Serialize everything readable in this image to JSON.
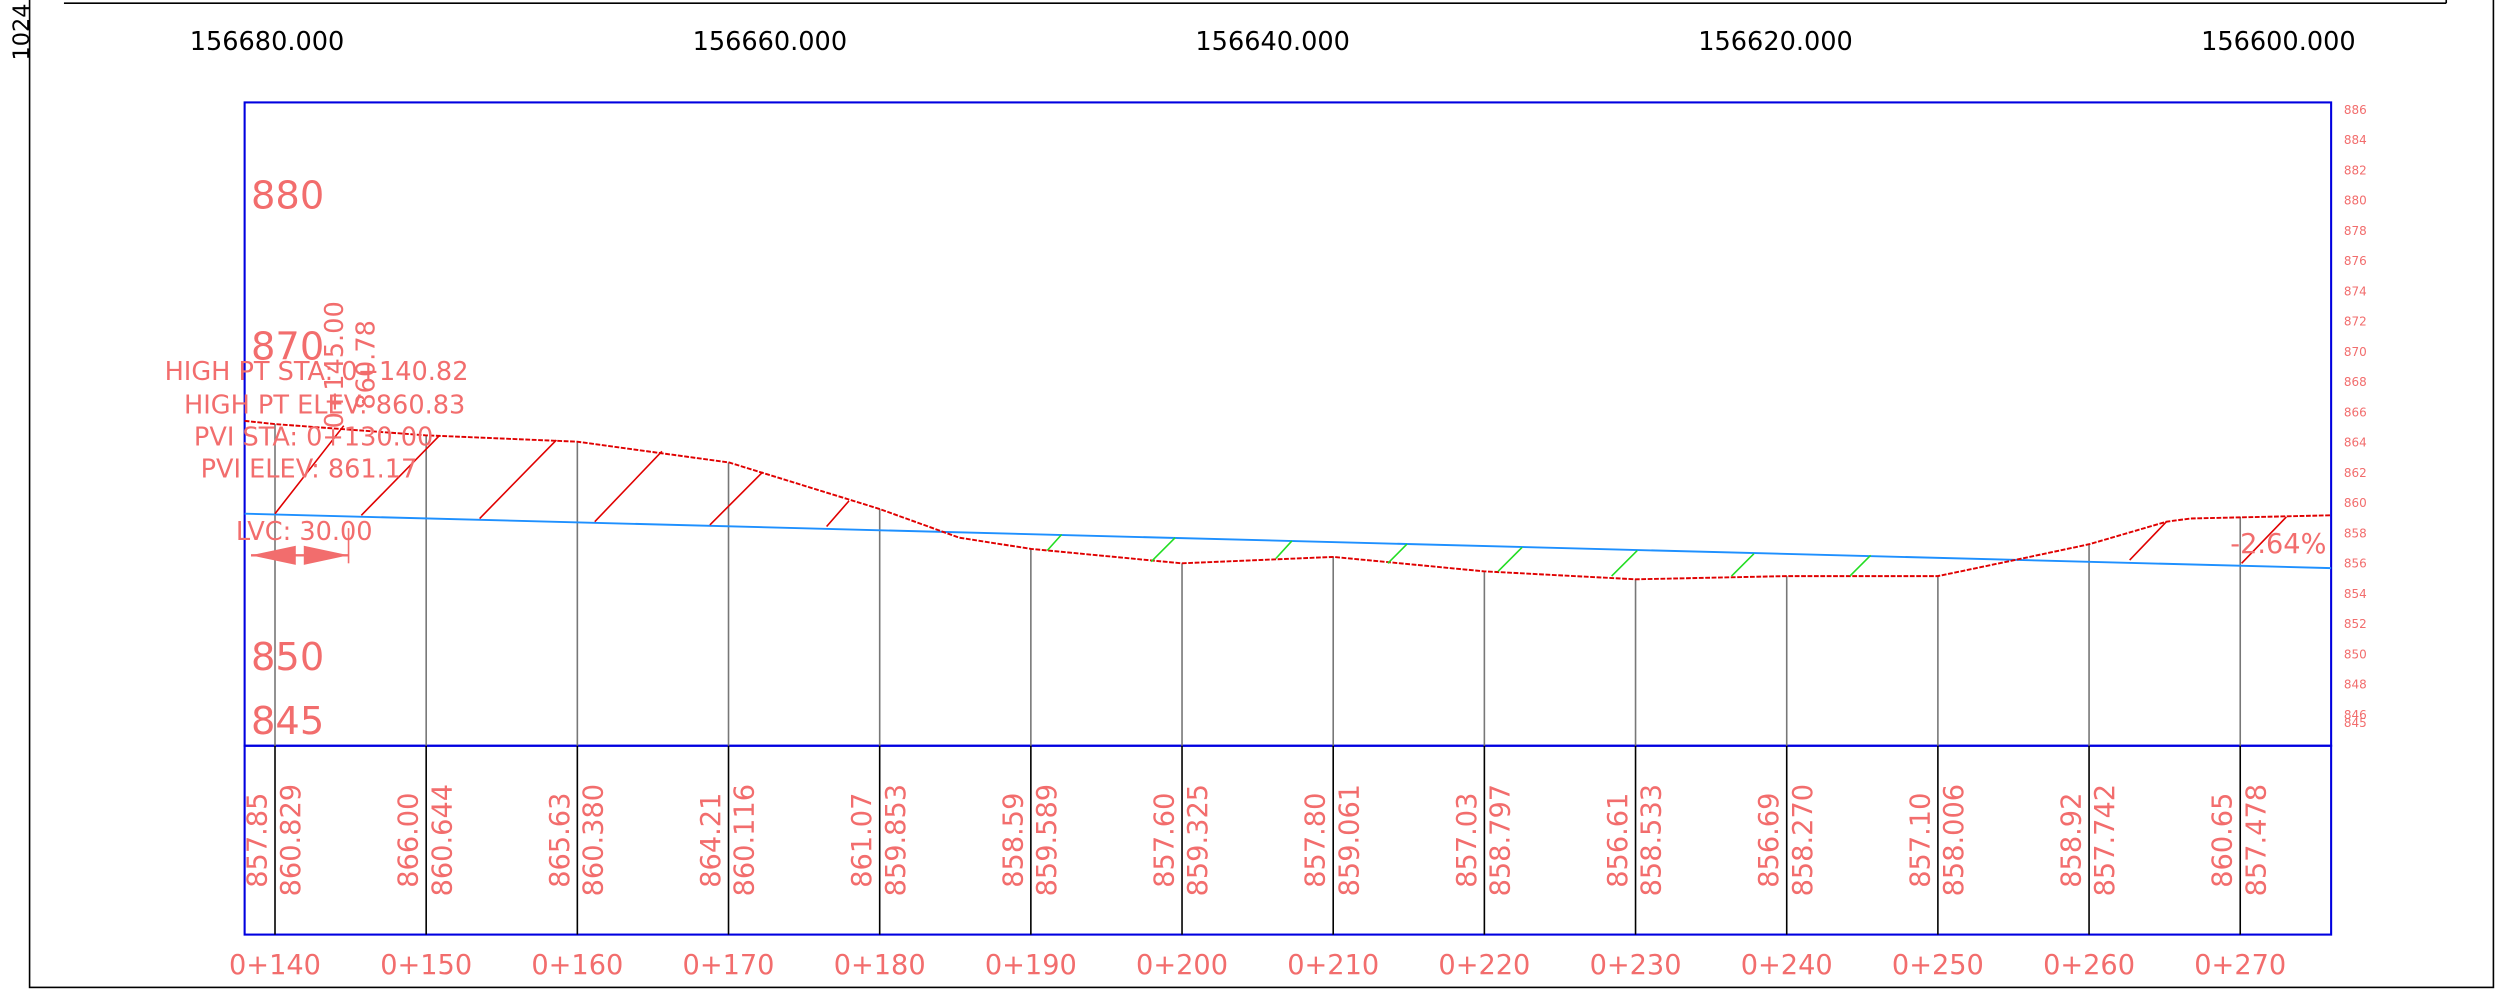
{
  "corner_label": "1024",
  "top_labels": [
    "156680.000",
    "156660.000",
    "156640.000",
    "156620.000",
    "156600.000"
  ],
  "left_labels": [
    880,
    870,
    850,
    845
  ],
  "right_labels": [
    886,
    884,
    882,
    880,
    878,
    876,
    874,
    872,
    870,
    868,
    866,
    864,
    862,
    860,
    858,
    856,
    854,
    852,
    850,
    848,
    846,
    845
  ],
  "annotations": [
    "HIGH PT STA: 0+140.82",
    "HIGH PT ELEV: 860.83",
    "PVI STA: 0+130.00",
    "PVI ELEV: 861.17",
    "LVC: 30.00"
  ],
  "vertical_labels": [
    "0+145.00",
    "860.78"
  ],
  "grade": "-2.64%",
  "ground_elevations": [
    "857.85",
    "866.00",
    "865.63",
    "864.21",
    "861.07",
    "858.59",
    "857.60",
    "857.80",
    "857.03",
    "856.61",
    "856.69",
    "857.10",
    "858.92",
    "860.65"
  ],
  "design_elevations": [
    "860.829",
    "860.644",
    "860.380",
    "860.116",
    "859.853",
    "859.589",
    "859.325",
    "859.061",
    "858.797",
    "858.533",
    "858.270",
    "858.006",
    "857.742",
    "857.478"
  ],
  "stations": [
    "0+140",
    "0+150",
    "0+160",
    "0+170",
    "0+180",
    "0+190",
    "0+200",
    "0+210",
    "0+220",
    "0+230",
    "0+240",
    "0+250",
    "0+260",
    "0+270"
  ]
}
